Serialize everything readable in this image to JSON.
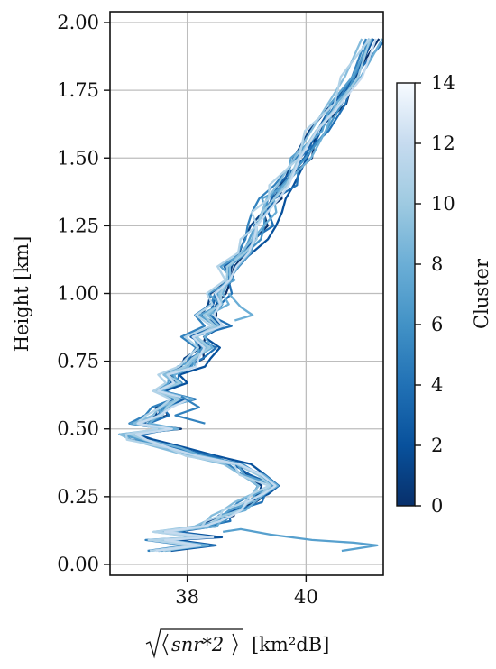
{
  "chart_data": {
    "type": "line",
    "title": "",
    "xlabel": "[km²dB]",
    "xlabel_math": "snr*2",
    "ylabel": "Height [km]",
    "xlim": [
      36.7,
      41.3
    ],
    "ylim": [
      -0.04,
      2.04
    ],
    "xticks": [
      38,
      40
    ],
    "xtick_labels": [
      "38",
      "40"
    ],
    "yticks": [
      0.0,
      0.25,
      0.5,
      0.75,
      1.0,
      1.25,
      1.5,
      1.75,
      2.0
    ],
    "ytick_labels": [
      "0.00",
      "0.25",
      "0.50",
      "0.75",
      "1.00",
      "1.25",
      "1.50",
      "1.75",
      "2.00"
    ],
    "grid": true,
    "colorbar": {
      "label": "Cluster",
      "range": [
        0,
        14
      ],
      "ticks": [
        0,
        2,
        4,
        6,
        8,
        10,
        12,
        14
      ],
      "tick_labels": [
        "0",
        "2",
        "4",
        "6",
        "8",
        "10",
        "12",
        "14"
      ],
      "colormap": "Blues_r",
      "color_stops": [
        "#08306b",
        "#08519c",
        "#2171b5",
        "#4292c6",
        "#6baed6",
        "#9ecae1",
        "#c6dbef",
        "#f7fbff"
      ]
    },
    "base_profile": {
      "y": [
        0.05,
        0.07,
        0.09,
        0.1,
        0.12,
        0.14,
        0.16,
        0.18,
        0.2,
        0.23,
        0.26,
        0.29,
        0.33,
        0.37,
        0.4,
        0.43,
        0.46,
        0.48,
        0.5,
        0.52,
        0.55,
        0.58,
        0.61,
        0.64,
        0.67,
        0.7,
        0.73,
        0.76,
        0.8,
        0.84,
        0.88,
        0.92,
        0.96,
        1.0,
        1.05,
        1.1,
        1.15,
        1.2,
        1.25,
        1.3,
        1.35,
        1.4,
        1.5,
        1.6,
        1.7,
        1.8,
        1.94
      ],
      "x": [
        37.5,
        38.2,
        37.5,
        38.3,
        37.6,
        38.3,
        38.5,
        38.6,
        38.8,
        39.0,
        39.3,
        39.4,
        39.1,
        38.8,
        38.2,
        37.7,
        37.2,
        37.0,
        37.7,
        37.2,
        37.5,
        37.6,
        37.9,
        37.5,
        37.8,
        37.6,
        38.0,
        38.1,
        38.3,
        38.1,
        38.5,
        38.3,
        38.5,
        38.5,
        38.7,
        38.7,
        38.9,
        39.1,
        39.2,
        39.3,
        39.4,
        39.6,
        39.9,
        40.2,
        40.5,
        40.8,
        41.1
      ]
    },
    "series": [
      {
        "cluster": 0,
        "dx": 0.08,
        "amp": 0.12
      },
      {
        "cluster": 1,
        "dx": -0.05,
        "amp": 0.1
      },
      {
        "cluster": 2,
        "dx": 0.15,
        "amp": 0.15
      },
      {
        "cluster": 3,
        "dx": 0.0,
        "amp": 0.08
      },
      {
        "cluster": 4,
        "dx": 0.12,
        "amp": 0.14
      },
      {
        "cluster": 5,
        "dx": -0.1,
        "amp": 0.11
      },
      {
        "cluster": 6,
        "dx": 0.05,
        "amp": 0.09
      },
      {
        "cluster": 7,
        "dx": -0.03,
        "amp": 0.13
      },
      {
        "cluster": 8,
        "dx": 0.1,
        "amp": 0.1
      },
      {
        "cluster": 9,
        "dx": -0.08,
        "amp": 0.12
      },
      {
        "cluster": 10,
        "dx": 0.02,
        "amp": 0.07
      },
      {
        "cluster": 11,
        "dx": -0.12,
        "amp": 0.1
      },
      {
        "cluster": 12,
        "dx": 0.06,
        "amp": 0.09
      }
    ],
    "outlier_segments": [
      {
        "cluster": 7,
        "x": [
          38.6,
          38.9,
          39.4,
          40.1,
          40.8,
          41.2,
          40.6
        ],
        "y": [
          0.12,
          0.13,
          0.11,
          0.09,
          0.08,
          0.07,
          0.05
        ]
      },
      {
        "cluster": 8,
        "x": [
          38.7,
          38.9,
          39.1,
          38.8
        ],
        "y": [
          1.0,
          0.95,
          0.92,
          0.9
        ]
      },
      {
        "cluster": 5,
        "x": [
          37.9,
          38.2,
          37.8,
          38.3
        ],
        "y": [
          0.62,
          0.58,
          0.55,
          0.52
        ]
      }
    ]
  }
}
